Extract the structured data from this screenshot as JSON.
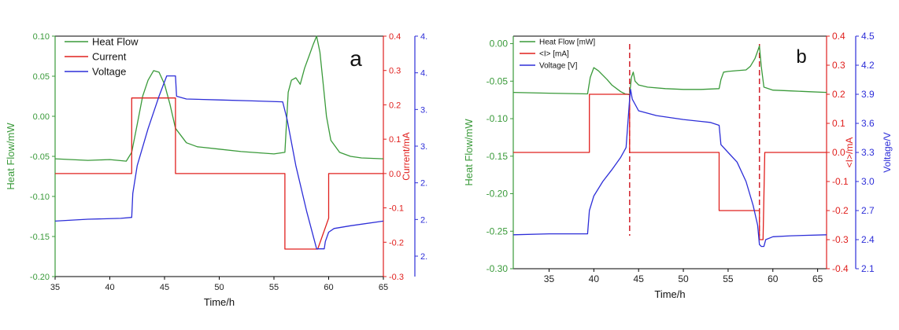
{
  "chart_data": [
    {
      "type": "line",
      "panel_label": "a",
      "xlabel": "Time/h",
      "ylabel_left": "Heat Flow/mW",
      "ylabel_right1": "Current/mA",
      "ylabel_right2": "",
      "xlim": [
        35,
        65
      ],
      "ylim_left": [
        -0.2,
        0.1
      ],
      "ylim_right1": [
        -0.3,
        0.4
      ],
      "ylim_right2": [
        2.0,
        4.6
      ],
      "x_ticks": [
        "35",
        "40",
        "45",
        "50",
        "55",
        "60",
        "65"
      ],
      "y_left_ticks": [
        "-0.20",
        "-0.15",
        "-0.10",
        "-0.05",
        "0.00",
        "0.05",
        "0.10"
      ],
      "y_right1_ticks": [
        "-0.3",
        "-0.2",
        "-0.1",
        "0.0",
        "0.1",
        "0.2",
        "0.3",
        "0.4"
      ],
      "y_right2_ticks": [
        "2.",
        "2.",
        "2.",
        "3.",
        "3.",
        "4.",
        "4."
      ],
      "legend": [
        "Heat Flow",
        "Current",
        "Voltage"
      ],
      "legend_position": "top-left",
      "colors": {
        "heat": "#3a9a3a",
        "current": "#e0201e",
        "voltage": "#2d2ed8"
      },
      "series": [
        {
          "name": "Heat Flow",
          "axis": "left",
          "x": [
            35,
            38,
            40,
            41.5,
            42,
            42.5,
            43,
            43.5,
            44,
            44.5,
            45,
            45.5,
            46,
            47,
            48,
            50,
            52,
            54,
            55,
            56,
            56.3,
            56.6,
            57,
            57.4,
            57.8,
            58.2,
            58.6,
            58.9,
            59.2,
            59.5,
            59.8,
            60.2,
            61,
            62,
            63,
            65
          ],
          "y": [
            -0.053,
            -0.055,
            -0.054,
            -0.056,
            -0.045,
            -0.01,
            0.025,
            0.045,
            0.057,
            0.055,
            0.04,
            0.015,
            -0.015,
            -0.033,
            -0.038,
            -0.041,
            -0.044,
            -0.046,
            -0.047,
            -0.045,
            0.03,
            0.045,
            0.048,
            0.04,
            0.06,
            0.075,
            0.09,
            0.1,
            0.08,
            0.04,
            0.0,
            -0.03,
            -0.045,
            -0.05,
            -0.052,
            -0.053
          ]
        },
        {
          "name": "Current",
          "axis": "right1",
          "x": [
            35,
            42,
            42,
            46,
            46,
            56,
            56,
            59,
            60,
            60,
            65
          ],
          "y": [
            0.0,
            0.0,
            0.22,
            0.22,
            0.0,
            0.0,
            -0.22,
            -0.22,
            -0.13,
            0.0,
            0.0
          ]
        },
        {
          "name": "Voltage",
          "axis": "right2",
          "x": [
            35,
            38,
            41,
            42,
            42.1,
            42.5,
            43.5,
            44.5,
            45.2,
            46,
            46.1,
            47,
            50,
            53,
            55.8,
            56.2,
            57,
            58,
            58.9,
            59.6,
            59.7,
            60,
            60.5,
            62,
            65
          ],
          "y": [
            2.6,
            2.62,
            2.63,
            2.64,
            2.9,
            3.2,
            3.6,
            3.95,
            4.17,
            4.17,
            3.95,
            3.92,
            3.91,
            3.9,
            3.89,
            3.7,
            3.2,
            2.7,
            2.3,
            2.3,
            2.38,
            2.48,
            2.52,
            2.55,
            2.6
          ]
        }
      ]
    },
    {
      "type": "line",
      "panel_label": "b",
      "xlabel": "Time/h",
      "ylabel_left": "Heat Flow/mW",
      "ylabel_right1": "<I>/mA",
      "ylabel_right2": "Voltage/V",
      "xlim": [
        31,
        66
      ],
      "ylim_left": [
        -0.3,
        0.01
      ],
      "ylim_right1": [
        -0.4,
        0.4
      ],
      "ylim_right2": [
        2.1,
        4.5
      ],
      "x_ticks": [
        "35",
        "40",
        "45",
        "50",
        "55",
        "60",
        "65"
      ],
      "y_left_ticks": [
        "-0.30",
        "-0.25",
        "-0.20",
        "-0.15",
        "-0.10",
        "-0.05",
        "0.00"
      ],
      "y_right1_ticks": [
        "-0.4",
        "-0.3",
        "-0.2",
        "-0.1",
        "0.0",
        "0.1",
        "0.2",
        "0.3",
        "0.4"
      ],
      "y_right2_ticks": [
        "2.1",
        "2.4",
        "2.7",
        "3.0",
        "3.3",
        "3.6",
        "3.9",
        "4.2",
        "4.5"
      ],
      "legend": [
        "Heat Flow [mW]",
        "<I> [mA]",
        "Voltage [V]"
      ],
      "legend_position": "top-left",
      "vlines": [
        44.0,
        58.5
      ],
      "colors": {
        "heat": "#3a9a3a",
        "current": "#e0201e",
        "voltage": "#2d2ed8",
        "vline": "#d0202a"
      },
      "series": [
        {
          "name": "Heat Flow [mW]",
          "axis": "left",
          "x": [
            31,
            35,
            39.3,
            39.6,
            40,
            40.5,
            41,
            41.5,
            42,
            43,
            43.5,
            44,
            44.2,
            44.4,
            44.6,
            45,
            46,
            48,
            50,
            52,
            54,
            54.2,
            54.5,
            55,
            56,
            57,
            57.5,
            58,
            58.3,
            58.5,
            58.7,
            59,
            60,
            62,
            64,
            66
          ],
          "y": [
            -0.065,
            -0.066,
            -0.067,
            -0.045,
            -0.032,
            -0.036,
            -0.042,
            -0.048,
            -0.055,
            -0.064,
            -0.067,
            -0.068,
            -0.045,
            -0.038,
            -0.05,
            -0.055,
            -0.058,
            -0.06,
            -0.061,
            -0.061,
            -0.06,
            -0.048,
            -0.038,
            -0.037,
            -0.036,
            -0.035,
            -0.03,
            -0.02,
            -0.01,
            -0.003,
            -0.03,
            -0.058,
            -0.062,
            -0.063,
            -0.064,
            -0.065
          ]
        },
        {
          "name": "<I> [mA]",
          "axis": "right1",
          "x": [
            31,
            39.5,
            39.5,
            44.0,
            44.0,
            54.0,
            54.0,
            58.5,
            58.5,
            58.9,
            59.1,
            66
          ],
          "y": [
            0.0,
            0.0,
            0.2,
            0.2,
            0.0,
            0.0,
            -0.2,
            -0.2,
            -0.3,
            -0.3,
            0.0,
            0.0
          ]
        },
        {
          "name": "Voltage [V]",
          "axis": "right2",
          "x": [
            31,
            35,
            39.3,
            39.5,
            40,
            41,
            42,
            43,
            43.6,
            44.0,
            44.1,
            44.3,
            45,
            47,
            50,
            53,
            54.0,
            54.2,
            55,
            56,
            57,
            57.8,
            58.3,
            58.5,
            58.7,
            59.0,
            59.2,
            60,
            62,
            66
          ],
          "y": [
            2.45,
            2.46,
            2.46,
            2.7,
            2.85,
            3.0,
            3.12,
            3.25,
            3.35,
            3.85,
            3.95,
            3.85,
            3.73,
            3.68,
            3.64,
            3.61,
            3.58,
            3.38,
            3.3,
            3.2,
            3.0,
            2.75,
            2.55,
            2.35,
            2.33,
            2.33,
            2.4,
            2.43,
            2.44,
            2.45
          ]
        }
      ]
    }
  ]
}
